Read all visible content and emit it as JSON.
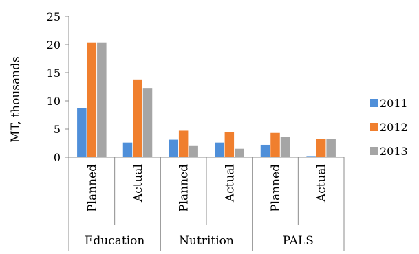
{
  "chart_data": {
    "type": "bar",
    "title": "",
    "xlabel": "",
    "ylabel": "MT, thousands",
    "ylim": [
      0,
      25
    ],
    "yticks": [
      0,
      5,
      10,
      15,
      20,
      25
    ],
    "grid": false,
    "legend_position": "right",
    "groups": [
      "Education",
      "Nutrition",
      "PALS"
    ],
    "categories": [
      "Planned",
      "Actual",
      "Planned",
      "Actual",
      "Planned",
      "Actual"
    ],
    "series": [
      {
        "name": "2011",
        "color": "#4f8fd9",
        "values": [
          8.7,
          2.6,
          3.1,
          2.6,
          2.2,
          0.2
        ]
      },
      {
        "name": "2012",
        "color": "#f07f2e",
        "values": [
          20.4,
          13.8,
          4.7,
          4.5,
          4.3,
          3.2
        ]
      },
      {
        "name": "2013",
        "color": "#a5a5a5",
        "values": [
          20.4,
          12.3,
          2.1,
          1.5,
          3.6,
          3.2
        ]
      }
    ]
  }
}
